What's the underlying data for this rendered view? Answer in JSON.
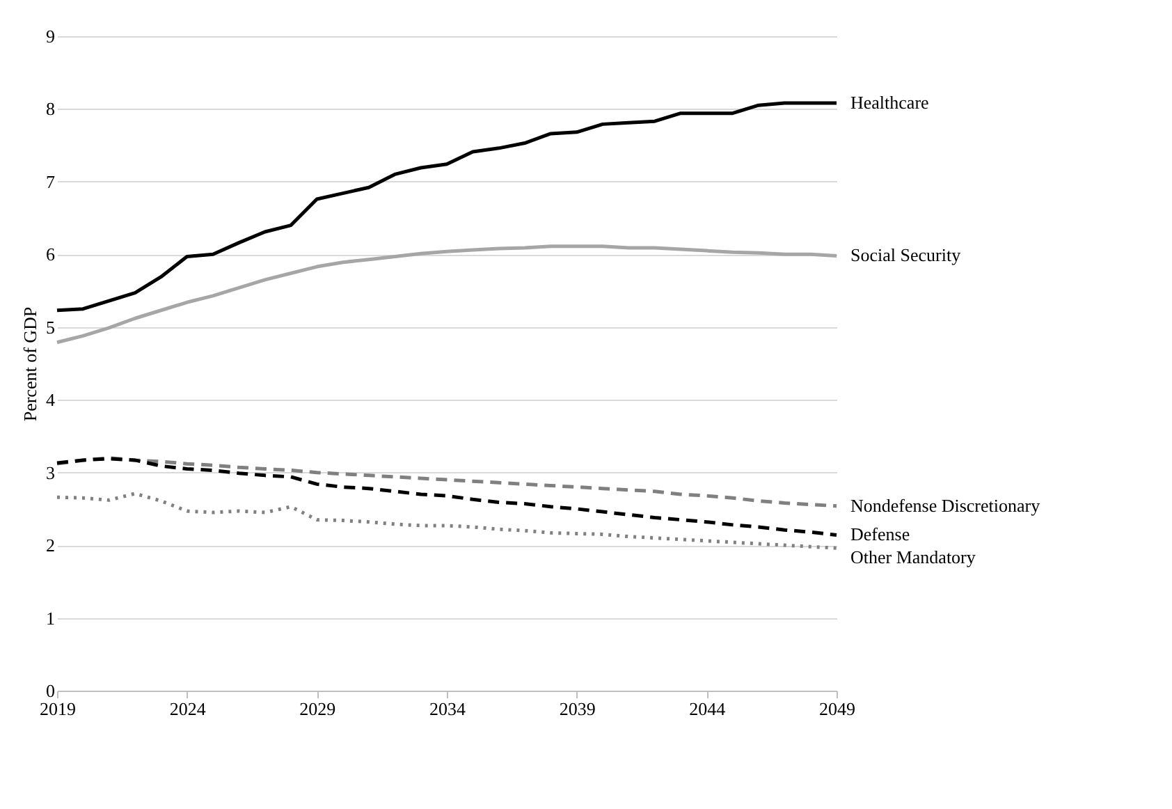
{
  "chart_data": {
    "type": "line",
    "ylabel": "Percent of GDP",
    "x": [
      2019,
      2020,
      2021,
      2022,
      2023,
      2024,
      2025,
      2026,
      2027,
      2028,
      2029,
      2030,
      2031,
      2032,
      2033,
      2034,
      2035,
      2036,
      2037,
      2038,
      2039,
      2040,
      2041,
      2042,
      2043,
      2044,
      2045,
      2046,
      2047,
      2048,
      2049
    ],
    "xlim": [
      2019,
      2049
    ],
    "xticks": [
      2019,
      2024,
      2029,
      2034,
      2039,
      2044,
      2049
    ],
    "ylim": [
      0,
      9
    ],
    "yticks": [
      0,
      1,
      2,
      3,
      4,
      5,
      6,
      7,
      8,
      9
    ],
    "grid": "y",
    "marker": "none",
    "series": [
      {
        "name": "Healthcare",
        "color": "#000000",
        "line_style": "solid",
        "values": [
          5.23,
          5.25,
          5.36,
          5.47,
          5.69,
          5.97,
          6.0,
          6.16,
          6.31,
          6.4,
          6.76,
          6.84,
          6.92,
          7.1,
          7.19,
          7.24,
          7.41,
          7.46,
          7.53,
          7.66,
          7.68,
          7.79,
          7.81,
          7.83,
          7.94,
          7.94,
          7.94,
          8.05,
          8.08,
          8.08,
          8.08
        ]
      },
      {
        "name": "Social Security",
        "color": "#a6a6a6",
        "line_style": "solid",
        "values": [
          4.79,
          4.88,
          4.99,
          5.12,
          5.23,
          5.34,
          5.43,
          5.54,
          5.65,
          5.74,
          5.83,
          5.89,
          5.93,
          5.97,
          6.01,
          6.04,
          6.06,
          6.08,
          6.09,
          6.11,
          6.11,
          6.11,
          6.09,
          6.09,
          6.07,
          6.05,
          6.03,
          6.02,
          6.0,
          6.0,
          5.98
        ]
      },
      {
        "name": "Nondefense Discretionary",
        "color": "#808080",
        "line_style": "dashed",
        "values": [
          3.12,
          3.17,
          3.2,
          3.17,
          3.15,
          3.12,
          3.1,
          3.07,
          3.05,
          3.03,
          3.0,
          2.98,
          2.96,
          2.94,
          2.92,
          2.9,
          2.88,
          2.86,
          2.84,
          2.82,
          2.8,
          2.78,
          2.76,
          2.74,
          2.7,
          2.68,
          2.65,
          2.61,
          2.58,
          2.56,
          2.54
        ]
      },
      {
        "name": "Defense",
        "color": "#000000",
        "line_style": "dashed",
        "values": [
          3.13,
          3.17,
          3.19,
          3.17,
          3.09,
          3.05,
          3.03,
          2.99,
          2.96,
          2.94,
          2.84,
          2.8,
          2.78,
          2.74,
          2.7,
          2.68,
          2.63,
          2.59,
          2.57,
          2.53,
          2.5,
          2.46,
          2.42,
          2.38,
          2.35,
          2.32,
          2.28,
          2.25,
          2.21,
          2.18,
          2.14
        ]
      },
      {
        "name": "Other Mandatory",
        "color": "#808080",
        "line_style": "dotted",
        "values": [
          2.66,
          2.65,
          2.62,
          2.71,
          2.61,
          2.47,
          2.45,
          2.47,
          2.45,
          2.53,
          2.35,
          2.34,
          2.32,
          2.29,
          2.27,
          2.27,
          2.25,
          2.22,
          2.2,
          2.17,
          2.16,
          2.15,
          2.12,
          2.1,
          2.08,
          2.06,
          2.04,
          2.02,
          2.0,
          1.98,
          1.96
        ]
      }
    ]
  }
}
